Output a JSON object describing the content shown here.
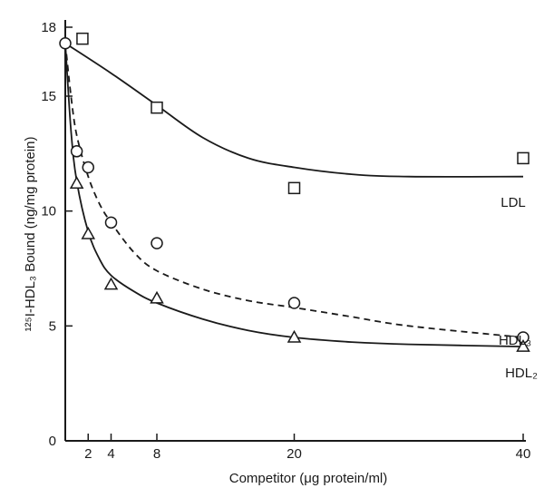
{
  "chart_data": {
    "type": "scatter",
    "xlabel": "Competitor (μg protein/ml)",
    "ylabel": "¹²⁵I-HDL₃ Bound (ng/mg protein)",
    "xlim": [
      0,
      42
    ],
    "ylim": [
      0,
      18
    ],
    "x_ticks": [
      2,
      4,
      8,
      20,
      40
    ],
    "y_ticks": [
      0,
      5,
      10,
      15,
      18
    ],
    "grid": false,
    "series": [
      {
        "name": "LDL",
        "marker": "square",
        "line_style": "solid",
        "points": [
          [
            0,
            17.3
          ],
          [
            1.5,
            17.5
          ],
          [
            8,
            14.5
          ],
          [
            20,
            11.0
          ],
          [
            40,
            12.3
          ]
        ],
        "fit": [
          [
            0,
            17.3
          ],
          [
            4,
            16.0
          ],
          [
            8,
            14.6
          ],
          [
            12,
            13.2
          ],
          [
            16,
            12.3
          ],
          [
            20,
            11.9
          ],
          [
            25,
            11.6
          ],
          [
            30,
            11.5
          ],
          [
            40,
            11.5
          ]
        ]
      },
      {
        "name": "HDL₃",
        "marker": "circle",
        "line_style": "dashed",
        "points": [
          [
            0,
            17.3
          ],
          [
            1,
            12.6
          ],
          [
            2,
            11.9
          ],
          [
            4,
            9.5
          ],
          [
            8,
            8.6
          ],
          [
            20,
            6.0
          ],
          [
            40,
            4.5
          ]
        ],
        "fit": [
          [
            0,
            17.3
          ],
          [
            0.5,
            15.0
          ],
          [
            1,
            13.3
          ],
          [
            2,
            11.5
          ],
          [
            3,
            10.3
          ],
          [
            4,
            9.5
          ],
          [
            6,
            8.2
          ],
          [
            8,
            7.4
          ],
          [
            12,
            6.6
          ],
          [
            16,
            6.1
          ],
          [
            20,
            5.8
          ],
          [
            25,
            5.4
          ],
          [
            30,
            5.0
          ],
          [
            40,
            4.5
          ]
        ]
      },
      {
        "name": "HDL₂",
        "marker": "triangle",
        "line_style": "solid",
        "points": [
          [
            0,
            17.3
          ],
          [
            1,
            11.2
          ],
          [
            2,
            9.0
          ],
          [
            4,
            6.8
          ],
          [
            8,
            6.2
          ],
          [
            20,
            4.5
          ],
          [
            40,
            4.1
          ]
        ],
        "fit": [
          [
            0,
            17.3
          ],
          [
            0.5,
            13.5
          ],
          [
            1,
            11.3
          ],
          [
            2,
            9.1
          ],
          [
            3,
            7.9
          ],
          [
            4,
            7.2
          ],
          [
            6,
            6.5
          ],
          [
            8,
            6.0
          ],
          [
            12,
            5.3
          ],
          [
            16,
            4.8
          ],
          [
            20,
            4.5
          ],
          [
            25,
            4.3
          ],
          [
            30,
            4.2
          ],
          [
            40,
            4.1
          ]
        ]
      }
    ]
  }
}
